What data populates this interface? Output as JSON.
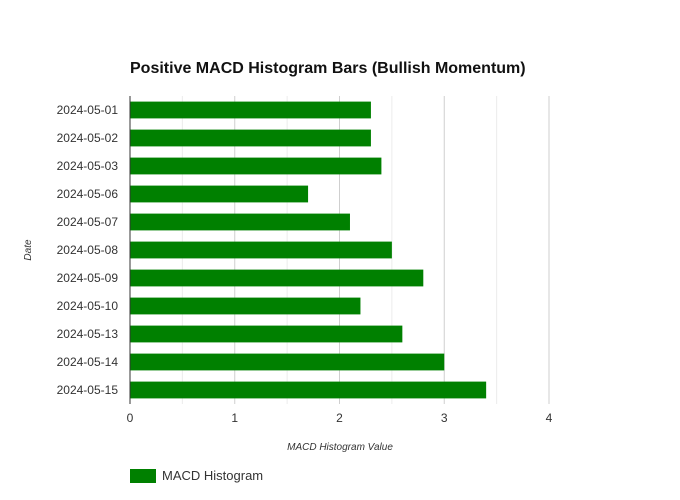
{
  "chart_data": {
    "type": "bar",
    "orientation": "horizontal",
    "title": "Positive MACD Histogram Bars (Bullish Momentum)",
    "xlabel": "MACD Histogram Value",
    "ylabel": "Date",
    "xlim": [
      0,
      4
    ],
    "xticks": [
      "0",
      "1",
      "2",
      "3",
      "4"
    ],
    "grid": true,
    "legend_position": "bottom-left",
    "categories": [
      "2024-05-01",
      "2024-05-02",
      "2024-05-03",
      "2024-05-06",
      "2024-05-07",
      "2024-05-08",
      "2024-05-09",
      "2024-05-10",
      "2024-05-13",
      "2024-05-14",
      "2024-05-15"
    ],
    "series": [
      {
        "name": "MACD Histogram",
        "color": "#008000",
        "values": [
          2.3,
          2.3,
          2.4,
          1.7,
          2.1,
          2.5,
          2.8,
          2.2,
          2.6,
          3.0,
          3.4
        ]
      }
    ]
  }
}
